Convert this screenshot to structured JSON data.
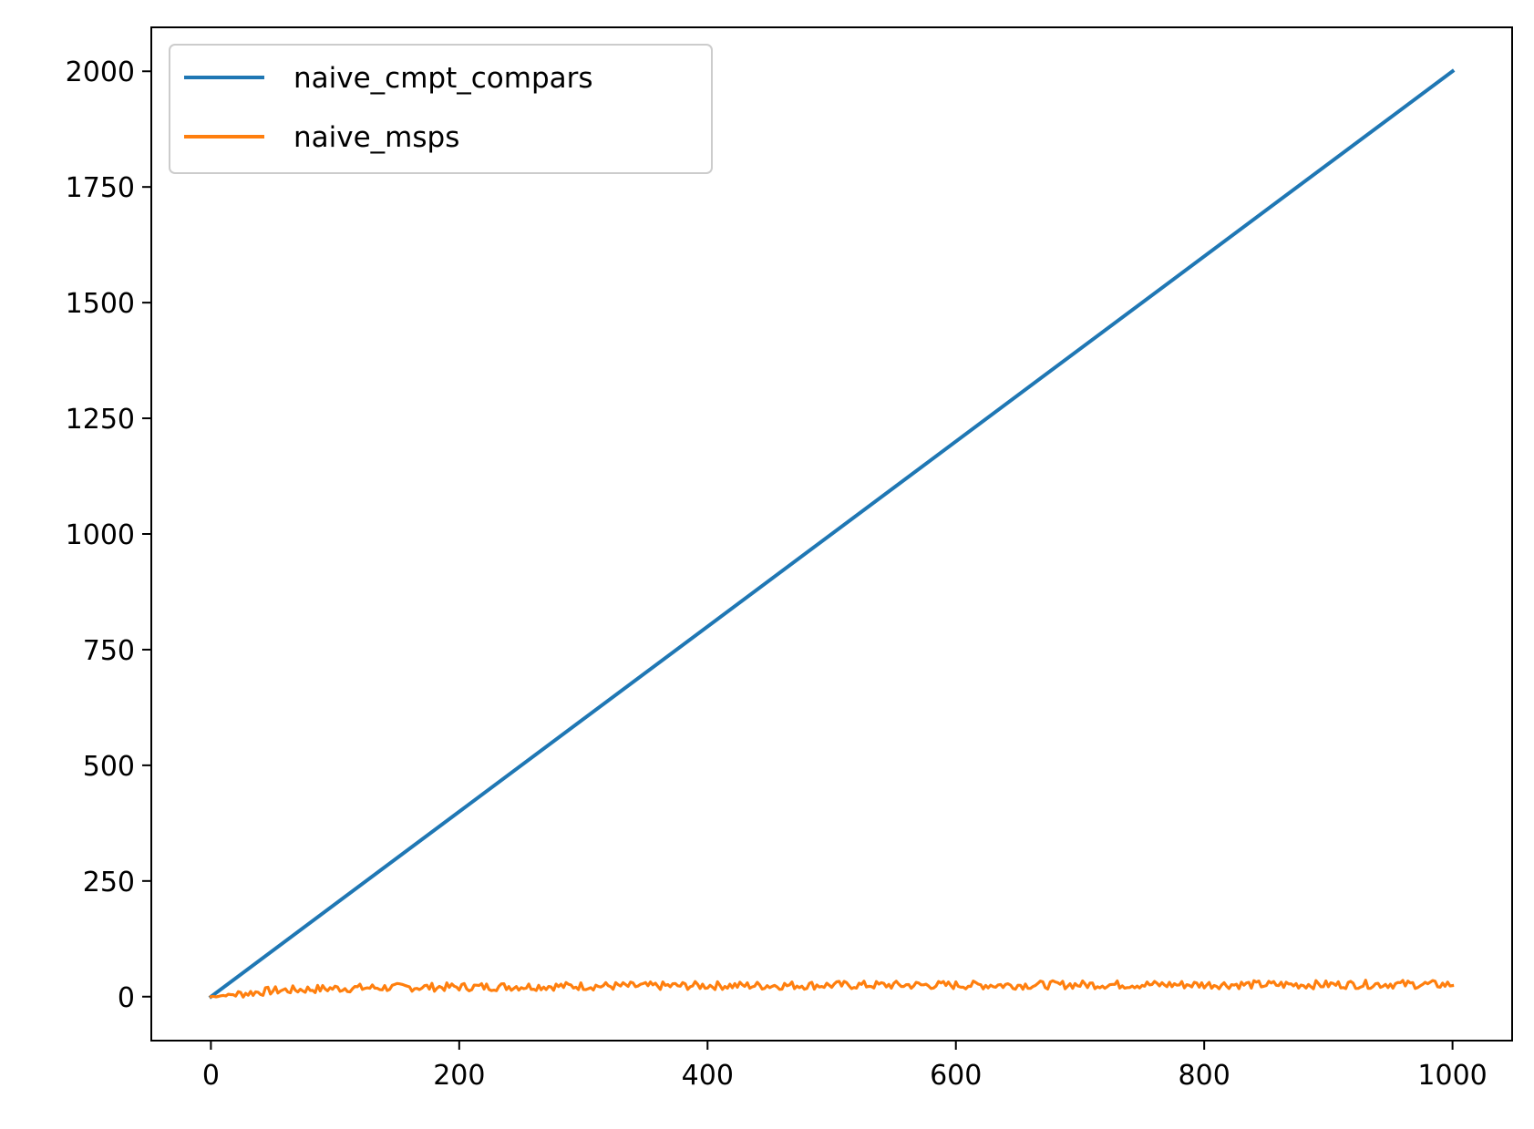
{
  "chart_data": {
    "type": "line",
    "title": "",
    "xlabel": "",
    "ylabel": "",
    "xlim": [
      -48,
      1048
    ],
    "ylim": [
      -95,
      2095
    ],
    "x_ticks": [
      0,
      200,
      400,
      600,
      800,
      1000
    ],
    "y_ticks": [
      0,
      250,
      500,
      750,
      1000,
      1250,
      1500,
      1750,
      2000
    ],
    "x_tick_labels": [
      "0",
      "200",
      "400",
      "600",
      "800",
      "1000"
    ],
    "y_tick_labels": [
      "0",
      "250",
      "500",
      "750",
      "1000",
      "1250",
      "1500",
      "1750",
      "2000"
    ],
    "grid": false,
    "legend": {
      "location": "upper-left"
    },
    "series": [
      {
        "name": "naive_cmpt_compars",
        "color": "#1f77b4",
        "x": [
          0,
          1000
        ],
        "y": [
          0,
          2000
        ]
      },
      {
        "name": "naive_msps",
        "color": "#ff7f0e",
        "x": [
          0,
          50,
          100,
          150,
          200,
          250,
          300,
          350,
          400,
          450,
          500,
          550,
          600,
          650,
          700,
          750,
          800,
          850,
          900,
          950,
          1000
        ],
        "y": [
          0,
          13,
          18,
          20,
          21,
          22,
          23,
          23,
          24,
          24,
          25,
          25,
          25,
          25,
          26,
          26,
          26,
          26,
          26,
          27,
          26
        ]
      }
    ]
  }
}
